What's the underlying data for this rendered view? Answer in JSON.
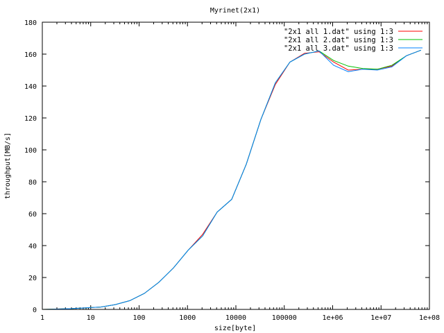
{
  "chart_data": {
    "type": "line",
    "title": "Myrinet(2x1)",
    "xlabel": "size[byte]",
    "ylabel": "throughput[MB/s]",
    "x_scale": "log",
    "xlim": [
      1,
      100000000
    ],
    "ylim": [
      0,
      180
    ],
    "x_ticks": [
      {
        "value": 1,
        "label": "1"
      },
      {
        "value": 10,
        "label": "10"
      },
      {
        "value": 100,
        "label": "100"
      },
      {
        "value": 1000,
        "label": "1000"
      },
      {
        "value": 10000,
        "label": "10000"
      },
      {
        "value": 100000,
        "label": "100000"
      },
      {
        "value": 1000000,
        "label": "1e+06"
      },
      {
        "value": 10000000,
        "label": "1e+07"
      },
      {
        "value": 100000000,
        "label": "1e+08"
      }
    ],
    "y_ticks": [
      {
        "value": 0,
        "label": "0"
      },
      {
        "value": 20,
        "label": "20"
      },
      {
        "value": 40,
        "label": "40"
      },
      {
        "value": 60,
        "label": "60"
      },
      {
        "value": 80,
        "label": "80"
      },
      {
        "value": 100,
        "label": "100"
      },
      {
        "value": 120,
        "label": "120"
      },
      {
        "value": 140,
        "label": "140"
      },
      {
        "value": 160,
        "label": "160"
      },
      {
        "value": 180,
        "label": "180"
      }
    ],
    "grid": false,
    "legend_position": "top-right",
    "series": [
      {
        "name": "\"2x1 all 1.dat\" using 1:3",
        "color": "#ff0000",
        "points": [
          [
            1,
            0
          ],
          [
            2,
            0.2
          ],
          [
            4,
            0.5
          ],
          [
            8,
            1
          ],
          [
            16,
            1.5
          ],
          [
            32,
            3
          ],
          [
            64,
            5.5
          ],
          [
            128,
            10
          ],
          [
            256,
            17
          ],
          [
            512,
            26
          ],
          [
            1024,
            37
          ],
          [
            2048,
            47
          ],
          [
            4096,
            61
          ],
          [
            8192,
            69
          ],
          [
            16384,
            91
          ],
          [
            32768,
            119
          ],
          [
            65536,
            141
          ],
          [
            131072,
            155
          ],
          [
            262144,
            160.5
          ],
          [
            524288,
            161.5
          ],
          [
            1048576,
            155
          ],
          [
            2097152,
            150
          ],
          [
            4194304,
            150.5
          ],
          [
            8388608,
            150.5
          ],
          [
            16777216,
            152.5
          ],
          [
            33554432,
            159
          ],
          [
            67108864,
            162.5
          ]
        ]
      },
      {
        "name": "\"2x1 all 2.dat\" using 1:3",
        "color": "#00c000",
        "points": [
          [
            1,
            0
          ],
          [
            2,
            0.2
          ],
          [
            4,
            0.5
          ],
          [
            8,
            1
          ],
          [
            16,
            1.5
          ],
          [
            32,
            3
          ],
          [
            64,
            5.5
          ],
          [
            128,
            10
          ],
          [
            256,
            17
          ],
          [
            512,
            26
          ],
          [
            1024,
            37
          ],
          [
            2048,
            46
          ],
          [
            4096,
            61
          ],
          [
            8192,
            69
          ],
          [
            16384,
            91
          ],
          [
            32768,
            119
          ],
          [
            65536,
            142
          ],
          [
            131072,
            155
          ],
          [
            262144,
            160
          ],
          [
            524288,
            162
          ],
          [
            1048576,
            156
          ],
          [
            2097152,
            152.5
          ],
          [
            4194304,
            151
          ],
          [
            8388608,
            150.5
          ],
          [
            16777216,
            153
          ],
          [
            33554432,
            159
          ],
          [
            67108864,
            162.5
          ]
        ]
      },
      {
        "name": "\"2x1 all 3.dat\" using 1:3",
        "color": "#0080ff",
        "points": [
          [
            1,
            0
          ],
          [
            2,
            0.2
          ],
          [
            4,
            0.5
          ],
          [
            8,
            1
          ],
          [
            16,
            1.5
          ],
          [
            32,
            3
          ],
          [
            64,
            5.5
          ],
          [
            128,
            10
          ],
          [
            256,
            17
          ],
          [
            512,
            26
          ],
          [
            1024,
            37
          ],
          [
            2048,
            46
          ],
          [
            4096,
            61
          ],
          [
            8192,
            69
          ],
          [
            16384,
            91
          ],
          [
            32768,
            119
          ],
          [
            65536,
            142
          ],
          [
            131072,
            155
          ],
          [
            262144,
            160
          ],
          [
            524288,
            162
          ],
          [
            1048576,
            153
          ],
          [
            2097152,
            149
          ],
          [
            4194304,
            150.5
          ],
          [
            8388608,
            150
          ],
          [
            16777216,
            152
          ],
          [
            33554432,
            159
          ],
          [
            67108864,
            162.5
          ]
        ]
      }
    ]
  }
}
